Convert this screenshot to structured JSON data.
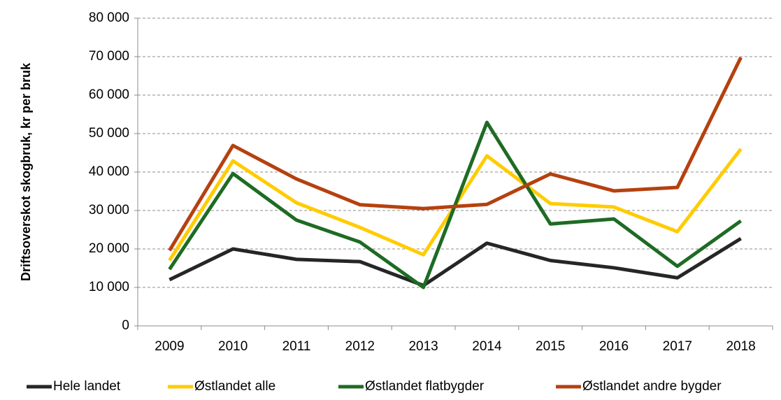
{
  "chart_data": {
    "type": "line",
    "y_label": "Driftsoverskot skogbruk, kr per bruk",
    "categories": [
      "2009",
      "2010",
      "2011",
      "2012",
      "2013",
      "2014",
      "2015",
      "2016",
      "2017",
      "2018"
    ],
    "series": [
      {
        "name": "Hele landet",
        "color": "#262626",
        "values": [
          12000,
          20000,
          17300,
          16700,
          10500,
          21500,
          17000,
          15100,
          12500,
          22700
        ]
      },
      {
        "name": "Østlandet alle",
        "color": "#ffcc00",
        "values": [
          17000,
          42900,
          32000,
          25600,
          18500,
          44200,
          31800,
          30900,
          24500,
          46000
        ]
      },
      {
        "name": "Østlandet flatbygder",
        "color": "#1e6b24",
        "values": [
          14700,
          39600,
          27500,
          21800,
          10000,
          52900,
          26500,
          27800,
          15500,
          27300
        ]
      },
      {
        "name": "Østlandet andre bygder",
        "color": "#b5410f",
        "values": [
          19600,
          46900,
          38200,
          31500,
          30500,
          31600,
          39500,
          35100,
          36000,
          69800
        ]
      }
    ],
    "ylim": [
      0,
      80000
    ],
    "yticks": [
      0,
      {
        "value": 10000,
        "label": "10 000"
      },
      {
        "value": 20000,
        "label": "20 000"
      },
      {
        "value": 30000,
        "label": "30 000"
      },
      {
        "value": 40000,
        "label": "40 000"
      },
      {
        "value": 50000,
        "label": "50 000"
      },
      {
        "value": 60000,
        "label": "60 000"
      },
      {
        "value": 70000,
        "label": "70 000"
      },
      {
        "value": 80000,
        "label": "80 000"
      }
    ],
    "grid": true,
    "legend": "bottom"
  }
}
